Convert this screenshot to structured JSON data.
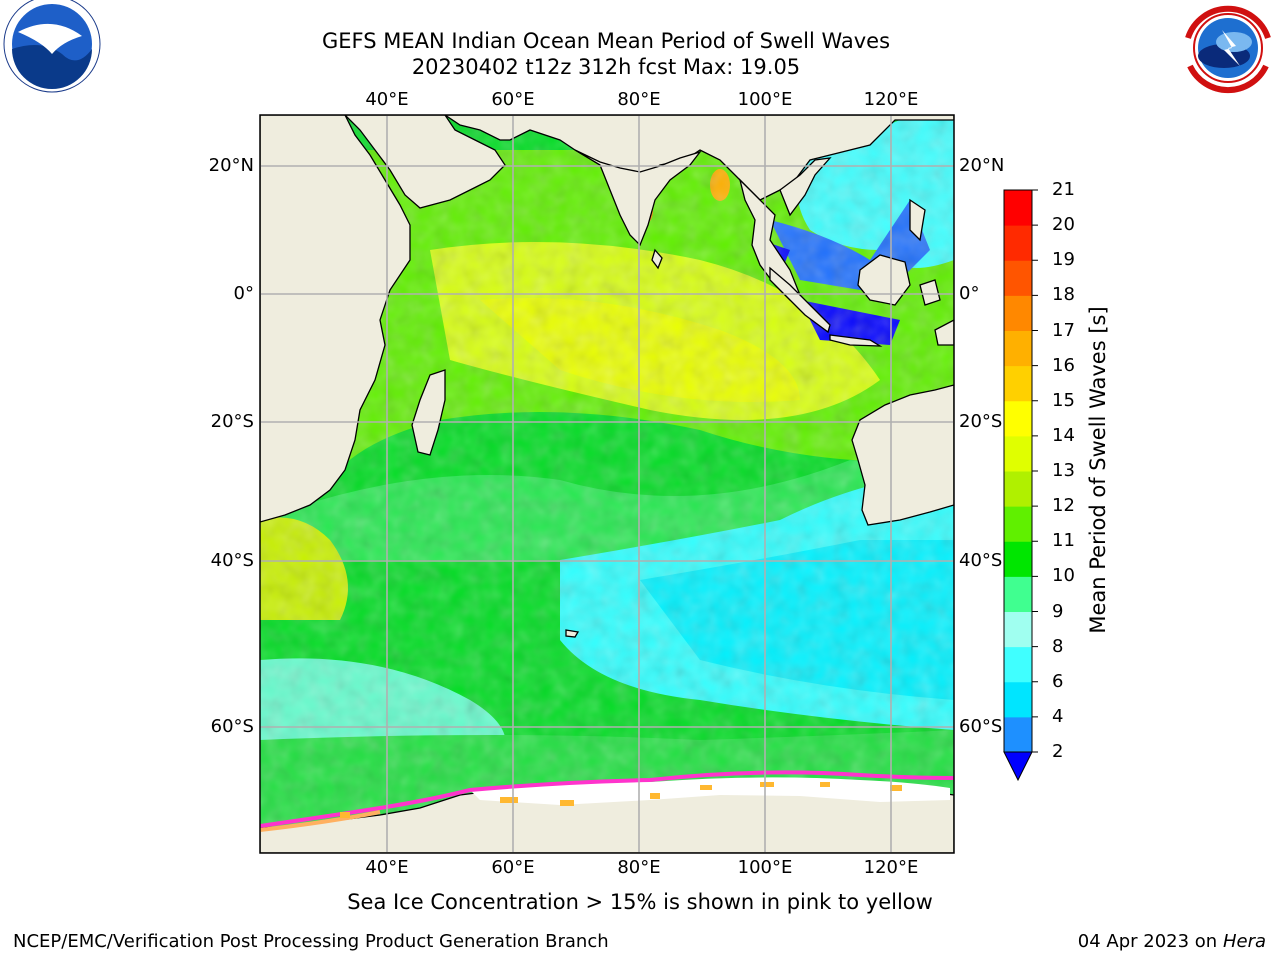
{
  "header": {
    "title_line1": "GEFS MEAN Indian Ocean Mean Period of Swell Waves",
    "title_line2": "20230402 t12z 312h fcst   Max: 19.05"
  },
  "logos": {
    "left": {
      "name": "noaa-logo",
      "text": "NOAA",
      "ring_text": "NATIONAL OCEANIC AND ATMOSPHERIC ADMINISTRATION · U.S. DEPARTMENT OF COMMERCE"
    },
    "right": {
      "name": "nws-logo",
      "ring_text": "NATIONAL WEATHER SERVICE"
    }
  },
  "map": {
    "lon_labels": [
      "40°E",
      "60°E",
      "80°E",
      "100°E",
      "120°E"
    ],
    "lat_labels": [
      "20°N",
      "0°",
      "20°S",
      "40°S",
      "60°S"
    ],
    "lon_extent": [
      20,
      130
    ],
    "lat_extent": [
      28,
      -72
    ],
    "colors": {
      "land": "#efedde",
      "sea_ice_white": "#ffffff",
      "ice_edge": "#ff33cc",
      "grid": "#b0b0b0"
    }
  },
  "colorbar": {
    "title": "Mean Period of Swell Waves [s]",
    "ticks": [
      "2",
      "4",
      "6",
      "8",
      "9",
      "10",
      "11",
      "12",
      "13",
      "14",
      "15",
      "16",
      "17",
      "18",
      "19",
      "20",
      "21"
    ],
    "colors": [
      "#0000ff",
      "#1e90ff",
      "#00e5ff",
      "#40ffff",
      "#a0fff0",
      "#40ff90",
      "#00e600",
      "#60f000",
      "#b0f000",
      "#e0ff00",
      "#ffff00",
      "#ffd000",
      "#ffb000",
      "#ff8800",
      "#ff5500",
      "#ff2a00",
      "#ff0000"
    ],
    "extend": "min"
  },
  "ice_note": "Sea Ice Concentration > 15% is shown in pink to yellow",
  "footer": {
    "left": "NCEP/EMC/Verification Post Processing Product Generation Branch",
    "right_date": "04 Apr 2023 on ",
    "right_host": "Hera"
  }
}
